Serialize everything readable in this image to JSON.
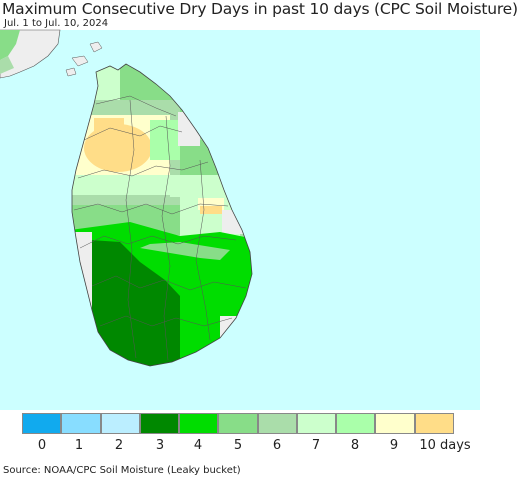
{
  "title": "Maximum Consecutive Dry Days in past 10 days (CPC Soil Moisture)",
  "subtitle": "Jul. 1 to Jul. 10, 2024",
  "source": "Source: NOAA/CPC Soil Moisture (Leaky bucket)",
  "colors": {
    "ocean": "#ccffff",
    "land_nodata": "#eeeeee",
    "boundary": "#555555"
  },
  "legend": {
    "items": [
      {
        "label": "0",
        "color": "#11aaee"
      },
      {
        "label": "1",
        "color": "#88ddff"
      },
      {
        "label": "2",
        "color": "#bbeeff"
      },
      {
        "label": "3",
        "color": "#008800"
      },
      {
        "label": "4",
        "color": "#00dd00"
      },
      {
        "label": "5",
        "color": "#88dd88"
      },
      {
        "label": "6",
        "color": "#aaddaa"
      },
      {
        "label": "7",
        "color": "#ccffcc"
      },
      {
        "label": "8",
        "color": "#aaffaa"
      },
      {
        "label": "9",
        "color": "#ffffcc"
      },
      {
        "label": "10 days",
        "color": "#ffdd88"
      }
    ]
  }
}
